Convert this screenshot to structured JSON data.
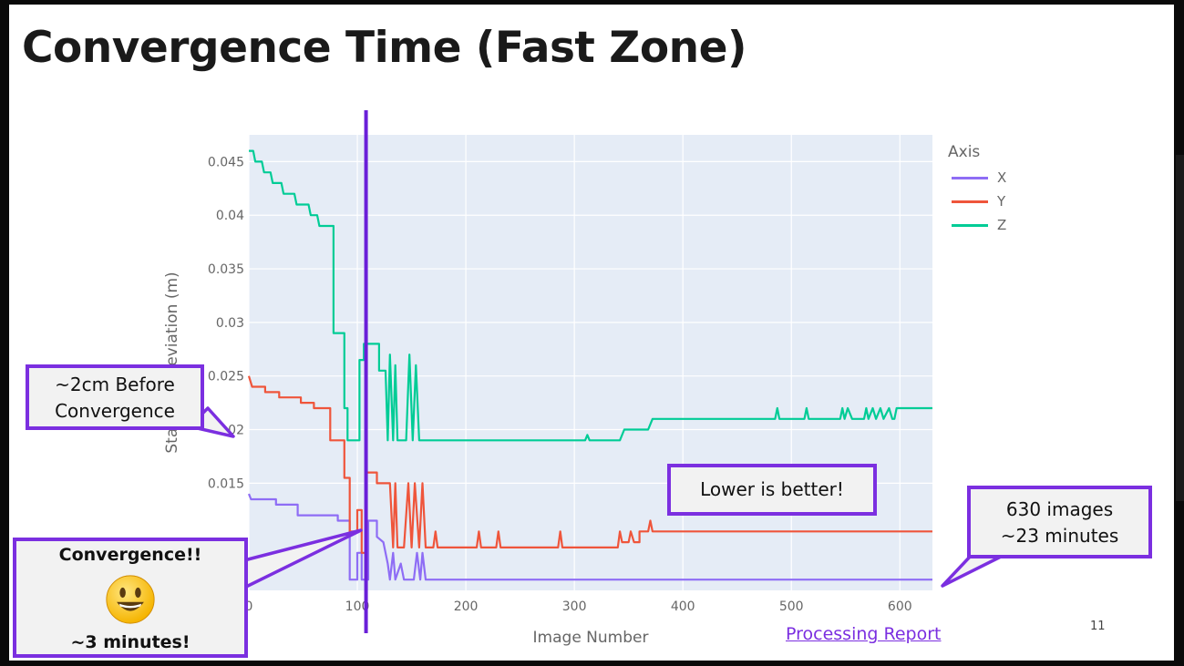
{
  "slide": {
    "title": "Convergence Time (Fast Zone)",
    "page_number": "11",
    "processing_report_link": "Processing Report"
  },
  "callouts": {
    "before": "~2cm Before Convergence",
    "convergence": "Convergence!!",
    "convergence_time": "~3 minutes!",
    "lower_better": "Lower is better!",
    "images_line1": "630 images",
    "images_line2": "~23 minutes"
  },
  "colors": {
    "accent": "#7b2fe0",
    "x_series": "#8e6df5",
    "y_series": "#ef553b",
    "z_series": "#00cc96",
    "plot_bg": "#e5ecf6"
  },
  "chart_data": {
    "type": "line",
    "title": "",
    "xlabel": "Image Number",
    "ylabel": "Standard Deviation (m)",
    "xlim": [
      0,
      630
    ],
    "ylim": [
      0.005,
      0.0475
    ],
    "x_ticks": [
      0,
      100,
      200,
      300,
      400,
      500,
      600
    ],
    "x_tick_labels": [
      "0",
      "100",
      "200",
      "300",
      "400",
      "500",
      "600"
    ],
    "y_ticks": [
      0.015,
      0.02,
      0.025,
      0.03,
      0.035,
      0.04,
      0.045
    ],
    "y_tick_labels": [
      "0.015",
      "0.02",
      "0.025",
      "0.03",
      "0.035",
      "0.04",
      "0.045"
    ],
    "grid": true,
    "legend_title": "Axis",
    "legend_position": "right",
    "convergence_marker_x": 108,
    "series": [
      {
        "name": "X",
        "points": [
          [
            0,
            0.014
          ],
          [
            2,
            0.0135
          ],
          [
            25,
            0.0135
          ],
          [
            25,
            0.013
          ],
          [
            45,
            0.013
          ],
          [
            45,
            0.012
          ],
          [
            82,
            0.012
          ],
          [
            82,
            0.0115
          ],
          [
            93,
            0.0115
          ],
          [
            93,
            0.006
          ],
          [
            100,
            0.006
          ],
          [
            100,
            0.0085
          ],
          [
            104,
            0.0085
          ],
          [
            104,
            0.006
          ],
          [
            110,
            0.006
          ],
          [
            110,
            0.0115
          ],
          [
            118,
            0.0115
          ],
          [
            118,
            0.01
          ],
          [
            124,
            0.0095
          ],
          [
            128,
            0.0075
          ],
          [
            130,
            0.006
          ],
          [
            133,
            0.0085
          ],
          [
            135,
            0.006
          ],
          [
            140,
            0.0075
          ],
          [
            143,
            0.006
          ],
          [
            152,
            0.006
          ],
          [
            155,
            0.0085
          ],
          [
            158,
            0.006
          ],
          [
            160,
            0.0085
          ],
          [
            163,
            0.006
          ],
          [
            630,
            0.006
          ]
        ]
      },
      {
        "name": "Y",
        "points": [
          [
            0,
            0.025
          ],
          [
            3,
            0.024
          ],
          [
            15,
            0.024
          ],
          [
            15,
            0.0235
          ],
          [
            28,
            0.0235
          ],
          [
            28,
            0.023
          ],
          [
            48,
            0.023
          ],
          [
            48,
            0.0225
          ],
          [
            60,
            0.0225
          ],
          [
            60,
            0.022
          ],
          [
            75,
            0.022
          ],
          [
            75,
            0.019
          ],
          [
            88,
            0.019
          ],
          [
            88,
            0.0155
          ],
          [
            93,
            0.0155
          ],
          [
            93,
            0.0105
          ],
          [
            100,
            0.0105
          ],
          [
            100,
            0.0125
          ],
          [
            104,
            0.0125
          ],
          [
            104,
            0.0085
          ],
          [
            108,
            0.0085
          ],
          [
            108,
            0.016
          ],
          [
            118,
            0.016
          ],
          [
            118,
            0.015
          ],
          [
            130,
            0.015
          ],
          [
            133,
            0.009
          ],
          [
            135,
            0.015
          ],
          [
            137,
            0.009
          ],
          [
            143,
            0.009
          ],
          [
            147,
            0.015
          ],
          [
            150,
            0.009
          ],
          [
            153,
            0.015
          ],
          [
            157,
            0.009
          ],
          [
            160,
            0.015
          ],
          [
            163,
            0.009
          ],
          [
            170,
            0.009
          ],
          [
            172,
            0.0105
          ],
          [
            174,
            0.009
          ],
          [
            210,
            0.009
          ],
          [
            212,
            0.0105
          ],
          [
            214,
            0.009
          ],
          [
            228,
            0.009
          ],
          [
            230,
            0.0105
          ],
          [
            232,
            0.009
          ],
          [
            285,
            0.009
          ],
          [
            287,
            0.0105
          ],
          [
            289,
            0.009
          ],
          [
            340,
            0.009
          ],
          [
            342,
            0.0105
          ],
          [
            344,
            0.0095
          ],
          [
            350,
            0.0095
          ],
          [
            352,
            0.0105
          ],
          [
            355,
            0.0095
          ],
          [
            360,
            0.0095
          ],
          [
            360,
            0.0105
          ],
          [
            368,
            0.0105
          ],
          [
            370,
            0.0115
          ],
          [
            372,
            0.0105
          ],
          [
            630,
            0.0105
          ]
        ]
      },
      {
        "name": "Z",
        "points": [
          [
            0,
            0.046
          ],
          [
            4,
            0.046
          ],
          [
            6,
            0.045
          ],
          [
            12,
            0.045
          ],
          [
            14,
            0.044
          ],
          [
            20,
            0.044
          ],
          [
            22,
            0.043
          ],
          [
            30,
            0.043
          ],
          [
            32,
            0.042
          ],
          [
            42,
            0.042
          ],
          [
            44,
            0.041
          ],
          [
            55,
            0.041
          ],
          [
            57,
            0.04
          ],
          [
            63,
            0.04
          ],
          [
            65,
            0.039
          ],
          [
            78,
            0.039
          ],
          [
            78,
            0.029
          ],
          [
            88,
            0.029
          ],
          [
            88,
            0.022
          ],
          [
            91,
            0.022
          ],
          [
            91,
            0.019
          ],
          [
            102,
            0.019
          ],
          [
            102,
            0.0265
          ],
          [
            106,
            0.0265
          ],
          [
            106,
            0.028
          ],
          [
            120,
            0.028
          ],
          [
            120,
            0.0255
          ],
          [
            126,
            0.0255
          ],
          [
            128,
            0.019
          ],
          [
            130,
            0.027
          ],
          [
            133,
            0.019
          ],
          [
            135,
            0.026
          ],
          [
            137,
            0.019
          ],
          [
            145,
            0.019
          ],
          [
            148,
            0.027
          ],
          [
            151,
            0.019
          ],
          [
            154,
            0.026
          ],
          [
            157,
            0.019
          ],
          [
            162,
            0.019
          ],
          [
            172,
            0.019
          ],
          [
            310,
            0.019
          ],
          [
            312,
            0.0195
          ],
          [
            314,
            0.019
          ],
          [
            342,
            0.019
          ],
          [
            346,
            0.02
          ],
          [
            368,
            0.02
          ],
          [
            372,
            0.021
          ],
          [
            485,
            0.021
          ],
          [
            487,
            0.022
          ],
          [
            489,
            0.021
          ],
          [
            512,
            0.021
          ],
          [
            514,
            0.022
          ],
          [
            516,
            0.021
          ],
          [
            545,
            0.021
          ],
          [
            547,
            0.022
          ],
          [
            549,
            0.021
          ],
          [
            552,
            0.022
          ],
          [
            556,
            0.021
          ],
          [
            567,
            0.021
          ],
          [
            569,
            0.022
          ],
          [
            571,
            0.021
          ],
          [
            575,
            0.022
          ],
          [
            578,
            0.021
          ],
          [
            582,
            0.022
          ],
          [
            585,
            0.021
          ],
          [
            590,
            0.022
          ],
          [
            593,
            0.021
          ],
          [
            595,
            0.021
          ],
          [
            597,
            0.022
          ],
          [
            630,
            0.022
          ]
        ]
      }
    ]
  }
}
